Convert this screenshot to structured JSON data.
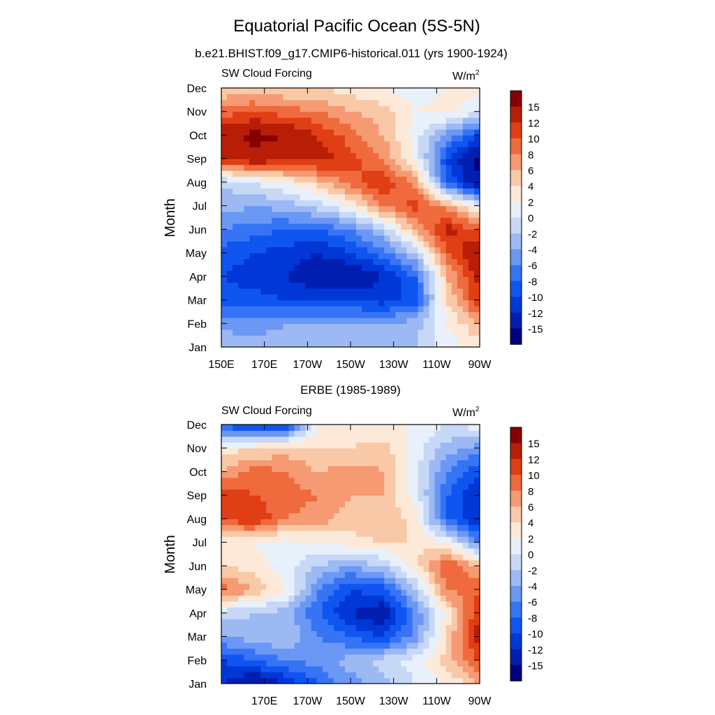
{
  "figure": {
    "title": "Equatorial Pacific Ocean (5S-5N)",
    "colorbar_levels": [
      -15,
      -12,
      -10,
      -8,
      -6,
      -4,
      -2,
      0,
      2,
      4,
      6,
      8,
      10,
      12,
      15
    ],
    "colorbar_colors": [
      "#00007f",
      "#001fb0",
      "#0037d7",
      "#0f55f0",
      "#3674f5",
      "#6b97f5",
      "#9cb9f4",
      "#c7d8f6",
      "#e8f0fb",
      "#fde9d8",
      "#f9c8a7",
      "#f59a72",
      "#ef6a3c",
      "#e03e14",
      "#b81e06",
      "#870000"
    ]
  },
  "chart_data": [
    {
      "type": "heatmap",
      "title": "b.e21.BHIST.f09_g17.CMIP6-historical.011 (yrs 1900-1924)",
      "left_label": "SW Cloud Forcing",
      "units_label": "W/m",
      "units_exp": "2",
      "ylabel": "Month",
      "xlim": [
        150,
        270
      ],
      "x_ticks": [
        150,
        170,
        190,
        210,
        230,
        250,
        270
      ],
      "x_tick_labels": [
        "150E",
        "170E",
        "170W",
        "150W",
        "130W",
        "110W",
        "90W"
      ],
      "y_tick_labels": [
        "Jan",
        "Feb",
        "Mar",
        "Apr",
        "May",
        "Jun",
        "Jul",
        "Aug",
        "Sep",
        "Oct",
        "Nov",
        "Dec"
      ],
      "colorbar_labels": [
        "15",
        "12",
        "10",
        "8",
        "6",
        "4",
        "2",
        "0",
        "-2",
        "-4",
        "-6",
        "-8",
        "-10",
        "-12",
        "-15"
      ],
      "x_nodes": [
        150,
        165,
        180,
        195,
        210,
        225,
        240,
        255,
        270
      ],
      "month_nodes": [
        "Jan",
        "Feb",
        "Mar",
        "Apr",
        "May",
        "Jun",
        "Jul",
        "Aug",
        "Sep",
        "Oct",
        "Nov",
        "Dec"
      ],
      "values": [
        [
          -2,
          -3,
          -3,
          -4,
          -4,
          -3,
          -2,
          1,
          3
        ],
        [
          -5,
          -5,
          -4,
          -4,
          -4,
          -4,
          -3,
          2,
          6
        ],
        [
          -9,
          -9,
          -10,
          -10,
          -10,
          -11,
          -9,
          4,
          12
        ],
        [
          -10,
          -11,
          -12,
          -14,
          -15,
          -12,
          -8,
          6,
          13
        ],
        [
          -9,
          -10,
          -11,
          -12,
          -10,
          -7,
          -2,
          10,
          15
        ],
        [
          -6,
          -7,
          -8,
          -8,
          -6,
          -2,
          6,
          13,
          9
        ],
        [
          -3,
          -4,
          -3,
          -1,
          2,
          8,
          11,
          7,
          1
        ],
        [
          -2,
          0,
          2,
          5,
          9,
          12,
          7,
          -8,
          -15
        ],
        [
          12,
          14,
          13,
          13,
          11,
          8,
          2,
          -10,
          -16
        ],
        [
          14,
          16,
          15,
          12,
          9,
          6,
          1,
          -5,
          -10
        ],
        [
          9,
          10,
          9,
          8,
          6,
          5,
          2,
          3,
          0
        ],
        [
          4,
          5,
          4,
          4,
          3,
          2,
          1,
          2,
          3
        ]
      ]
    },
    {
      "type": "heatmap",
      "title": "ERBE (1985-1989)",
      "left_label": "SW Cloud Forcing",
      "units_label": "W/m",
      "units_exp": "2",
      "ylabel": "Month",
      "xlim": [
        150,
        270
      ],
      "x_ticks": [
        170,
        190,
        210,
        230,
        250,
        270
      ],
      "x_tick_labels": [
        "170E",
        "170W",
        "150W",
        "130W",
        "110W",
        "90W"
      ],
      "y_tick_labels": [
        "Jan",
        "Feb",
        "Mar",
        "Apr",
        "May",
        "Jun",
        "Jul",
        "Aug",
        "Sep",
        "Oct",
        "Nov",
        "Dec"
      ],
      "colorbar_labels": [
        "15",
        "12",
        "10",
        "8",
        "6",
        "4",
        "2",
        "0",
        "-2",
        "-4",
        "-6",
        "-8",
        "-10",
        "-12",
        "-15"
      ],
      "x_nodes": [
        150,
        165,
        180,
        195,
        210,
        225,
        240,
        255,
        270
      ],
      "month_nodes": [
        "Jan",
        "Feb",
        "Mar",
        "Apr",
        "May",
        "Jun",
        "Jul",
        "Aug",
        "Sep",
        "Oct",
        "Nov",
        "Dec"
      ],
      "values": [
        [
          -12,
          -15,
          -12,
          -8,
          -5,
          -3,
          0,
          2,
          6
        ],
        [
          -10,
          -8,
          -6,
          -5,
          -3,
          -1,
          1,
          5,
          10
        ],
        [
          -4,
          -3,
          -2,
          -6,
          -8,
          -10,
          -5,
          4,
          14
        ],
        [
          -1,
          -2,
          -3,
          -8,
          -12,
          -14,
          -6,
          3,
          12
        ],
        [
          9,
          6,
          2,
          -6,
          -10,
          -9,
          -2,
          8,
          10
        ],
        [
          4,
          3,
          1,
          -2,
          -4,
          -2,
          3,
          10,
          6
        ],
        [
          3,
          2,
          1,
          2,
          3,
          4,
          4,
          2,
          -6
        ],
        [
          10,
          12,
          8,
          7,
          5,
          6,
          3,
          -8,
          -12
        ],
        [
          12,
          10,
          9,
          8,
          6,
          6,
          1,
          -8,
          -12
        ],
        [
          6,
          9,
          8,
          6,
          7,
          6,
          1,
          -6,
          -10
        ],
        [
          3,
          4,
          5,
          4,
          4,
          5,
          1,
          -3,
          -5
        ],
        [
          -8,
          -12,
          -10,
          2,
          3,
          2,
          2,
          0,
          1
        ]
      ]
    }
  ]
}
